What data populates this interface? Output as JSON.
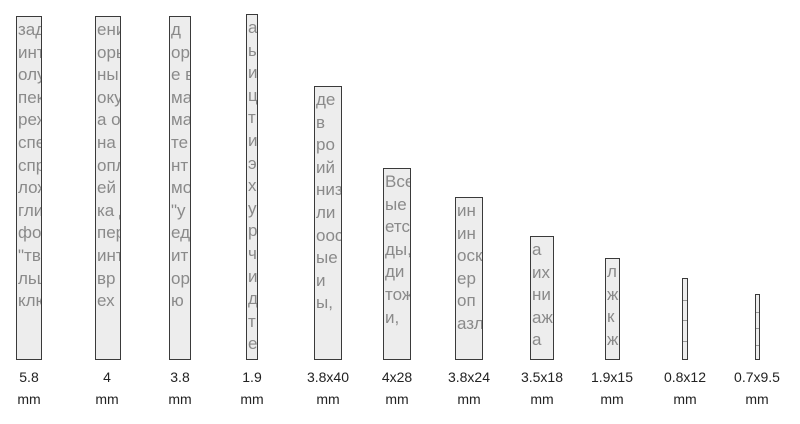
{
  "strips": [
    {
      "id": "5-8mm",
      "size_line": "5.8",
      "unit_line": "mm",
      "width": 5.8,
      "length": null,
      "text_lines": [
        "зада",
        "интер",
        "олуче",
        "пектр",
        "режд",
        "спеч",
        "спра",
        "лож",
        "глик",
        "фор",
        "\"тве",
        "льш",
        "ключ"
      ]
    },
    {
      "id": "4mm",
      "size_line": "4",
      "unit_line": "mm",
      "width": 4,
      "length": null,
      "text_lines": [
        "ени",
        "оры,",
        "ны",
        "окуп",
        "а о",
        "на",
        "опл",
        "ей",
        "ка д",
        "пер",
        "инте",
        "вр",
        "ех"
      ]
    },
    {
      "id": "3-8mm",
      "size_line": "3.8",
      "unit_line": "mm",
      "width": 3.8,
      "length": null,
      "text_lines": [
        "д",
        "ор",
        "е в",
        "ма",
        "ма",
        "те",
        "нт",
        "мо",
        "\"у",
        "ед",
        "ит",
        "ор",
        "ю"
      ]
    },
    {
      "id": "1-9mm",
      "size_line": "1.9",
      "unit_line": "mm",
      "width": 1.9,
      "length": null,
      "text_lines": [
        "а",
        "ы",
        "и",
        "ц",
        "т",
        "и",
        "э",
        "х",
        "у",
        "р",
        "ч",
        "и",
        "д",
        "т",
        "е"
      ]
    },
    {
      "id": "3-8x40",
      "size_line": "3.8x40",
      "unit_line": "mm",
      "width": 3.8,
      "length": 40,
      "text_lines": [
        "де",
        "в",
        "ро",
        "ий",
        "низ",
        "ли",
        "оос",
        "ые",
        "и",
        "ы,"
      ]
    },
    {
      "id": "4x28",
      "size_line": "4x28",
      "unit_line": "mm",
      "width": 4,
      "length": 28,
      "text_lines": [
        "Все",
        "ые",
        "етс",
        "ды,",
        "ди",
        "тож",
        "и,"
      ]
    },
    {
      "id": "3-8x24",
      "size_line": "3.8x24",
      "unit_line": "mm",
      "width": 3.8,
      "length": 24,
      "text_lines": [
        "ин",
        "ин",
        "оск",
        "ер",
        "оп",
        "азл"
      ]
    },
    {
      "id": "3-5x18",
      "size_line": "3.5x18",
      "unit_line": "mm",
      "width": 3.5,
      "length": 18,
      "text_lines": [
        "а",
        "их",
        "ни",
        "аж",
        "а"
      ]
    },
    {
      "id": "1-9x15",
      "size_line": "1.9x15",
      "unit_line": "mm",
      "width": 1.9,
      "length": 15,
      "text_lines": [
        "л",
        "ж",
        "к",
        "ж"
      ]
    },
    {
      "id": "0-8x12",
      "size_line": "0.8x12",
      "unit_line": "mm",
      "width": 0.8,
      "length": 12,
      "text_lines": []
    },
    {
      "id": "0-7x9-5",
      "size_line": "0.7x9.5",
      "unit_line": "mm",
      "width": 0.7,
      "length": 9.5,
      "text_lines": []
    }
  ]
}
